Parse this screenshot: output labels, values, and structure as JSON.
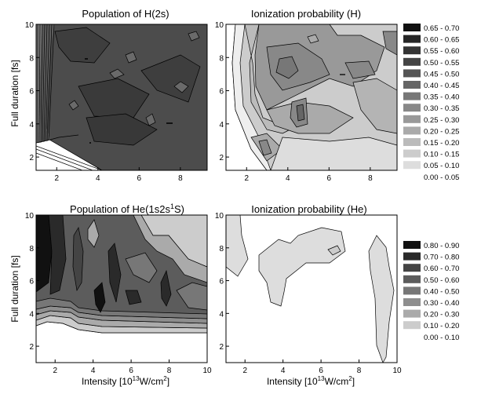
{
  "chart_data": [
    {
      "type": "heatmap",
      "title": "Population of H(2s)",
      "ylabel": "Full duration [fs]",
      "xlabel": "",
      "xlim": [
        1,
        9.3
      ],
      "ylim": [
        1.2,
        10
      ],
      "xticks": [
        2,
        4,
        6,
        8
      ],
      "yticks": [
        2,
        4,
        6,
        8,
        10
      ],
      "contour_lines": true,
      "legend": "right",
      "x": [
        1,
        1.5,
        2,
        2.5,
        3,
        3.5,
        4,
        4.5,
        5,
        5.5,
        6,
        6.5,
        7,
        7.5,
        8,
        8.5,
        9,
        9.3
      ],
      "y": [
        1.2,
        2,
        3,
        4,
        5,
        6,
        7,
        8,
        9,
        10
      ],
      "z_note": "z[j][i] = value at y[j], x[i]"
    },
    {
      "type": "heatmap",
      "title": "Ionization probability (H)",
      "ylabel": "",
      "xlabel": "",
      "xlim": [
        1,
        9.3
      ],
      "ylim": [
        1.2,
        10
      ],
      "xticks": [
        2,
        4,
        6,
        8
      ],
      "yticks": [
        2,
        4,
        6,
        8,
        10
      ],
      "contour_lines": true,
      "legend": "right"
    },
    {
      "type": "heatmap",
      "title_main": "Population of He(1s2s",
      "title_sup": "1",
      "title_end": "S)",
      "ylabel": "Full duration [fs]",
      "xlabel_main": "Intensity [10",
      "xlabel_sup": "13",
      "xlabel_mid": "W/cm",
      "xlabel_sup2": "2",
      "xlabel_end": "]",
      "xlim": [
        1,
        10
      ],
      "ylim": [
        1,
        10
      ],
      "xticks": [
        2,
        4,
        6,
        8,
        10
      ],
      "yticks": [
        2,
        4,
        6,
        8,
        10
      ],
      "contour_lines": true,
      "legend": "right"
    },
    {
      "type": "heatmap",
      "title": "Ionization probability (He)",
      "ylabel": "",
      "xlabel_main": "Intensity [10",
      "xlabel_sup": "13",
      "xlabel_mid": "W/cm",
      "xlabel_sup2": "2",
      "xlabel_end": "]",
      "xlim": [
        1,
        10
      ],
      "ylim": [
        1,
        10
      ],
      "xticks": [
        2,
        4,
        6,
        8,
        10
      ],
      "yticks": [
        2,
        4,
        6,
        8,
        10
      ],
      "contour_lines": true,
      "legend": "right"
    }
  ],
  "legends": {
    "top": [
      {
        "label": "0.65 - 0.70",
        "color": "#111111"
      },
      {
        "label": "0.60 - 0.65",
        "color": "#262626"
      },
      {
        "label": "0.55 - 0.60",
        "color": "#343434"
      },
      {
        "label": "0.50 - 0.55",
        "color": "#444444"
      },
      {
        "label": "0.45 - 0.50",
        "color": "#555555"
      },
      {
        "label": "0.40 - 0.45",
        "color": "#666666"
      },
      {
        "label": "0.35 - 0.40",
        "color": "#777777"
      },
      {
        "label": "0.30 - 0.35",
        "color": "#888888"
      },
      {
        "label": "0.25 - 0.30",
        "color": "#999999"
      },
      {
        "label": "0.20 - 0.25",
        "color": "#aaaaaa"
      },
      {
        "label": "0.15 - 0.20",
        "color": "#bbbbbb"
      },
      {
        "label": "0.10 - 0.15",
        "color": "#cccccc"
      },
      {
        "label": "0.05 - 0.10",
        "color": "#dddddd"
      },
      {
        "label": "0.00 - 0.05",
        "color": "#ffffff"
      }
    ],
    "bottom": [
      {
        "label": "0.80 - 0.90",
        "color": "#111111"
      },
      {
        "label": "0.70 - 0.80",
        "color": "#2a2a2a"
      },
      {
        "label": "0.60 - 0.70",
        "color": "#444444"
      },
      {
        "label": "0.50 - 0.60",
        "color": "#5c5c5c"
      },
      {
        "label": "0.40 - 0.50",
        "color": "#777777"
      },
      {
        "label": "0.30 - 0.40",
        "color": "#8e8e8e"
      },
      {
        "label": "0.20 - 0.30",
        "color": "#aaaaaa"
      },
      {
        "label": "0.10 - 0.20",
        "color": "#cccccc"
      },
      {
        "label": "0.00 - 0.10",
        "color": "#ffffff"
      }
    ]
  }
}
